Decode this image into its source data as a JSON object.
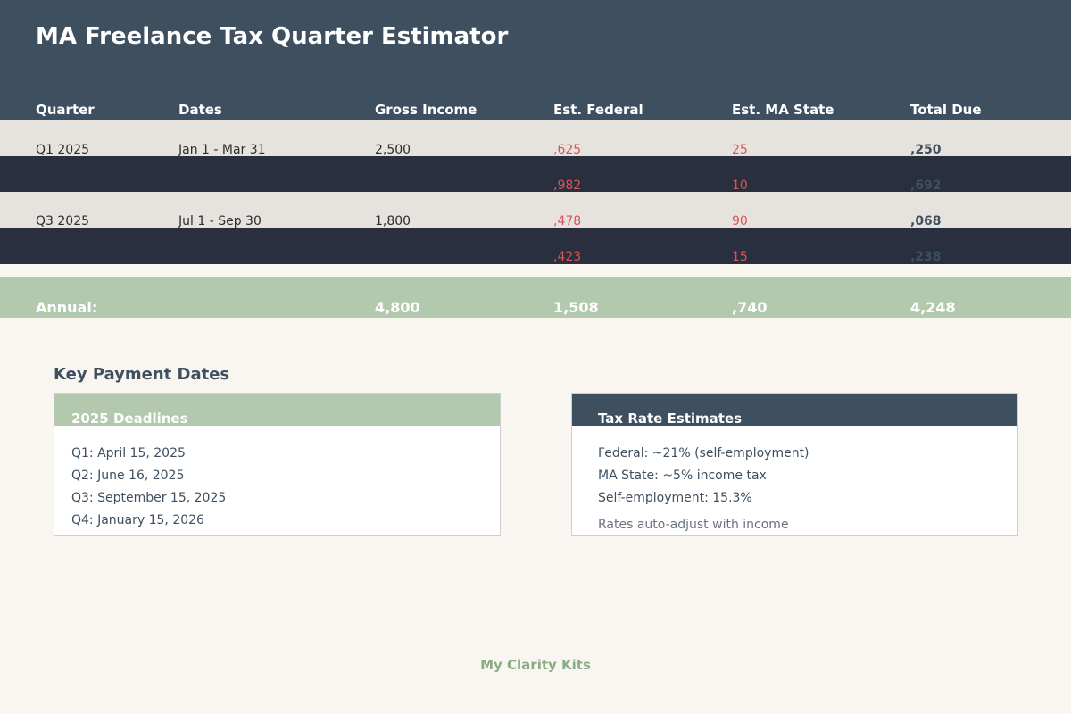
{
  "app": {
    "title": "MA Freelance Tax Quarter Estimator"
  },
  "table": {
    "headers": [
      "Quarter",
      "Dates",
      "Gross Income",
      "Est. Federal",
      "Est. MA State",
      "Total Due"
    ],
    "rows": [
      {
        "quarter": "Q1 2025",
        "dates": "Jan 1 - Mar 31",
        "gross": "2,500",
        "federal": ",625",
        "state": "25",
        "total": ",250"
      },
      {
        "quarter": "",
        "dates": "",
        "gross": "",
        "federal": ",982",
        "state": "10",
        "total": ",692"
      },
      {
        "quarter": "Q3 2025",
        "dates": "Jul 1 - Sep 30",
        "gross": "1,800",
        "federal": ",478",
        "state": "90",
        "total": ",068"
      },
      {
        "quarter": "",
        "dates": "",
        "gross": "",
        "federal": ",423",
        "state": "15",
        "total": ",238"
      }
    ],
    "annual": {
      "label": "Annual:",
      "gross": "4,800",
      "federal": "1,508",
      "state": ",740",
      "total": "4,248"
    }
  },
  "payment_dates": {
    "section_title": "Key Payment Dates",
    "deadlines": {
      "title": "2025 Deadlines",
      "items": [
        "Q1: April 15, 2025",
        "Q2: June 16, 2025",
        "Q3: September 15, 2025",
        "Q4: January 15, 2026"
      ]
    },
    "rates": {
      "title": "Tax Rate Estimates",
      "items": [
        "Federal: ~21% (self-employment)",
        "MA State: ~5% income tax",
        "Self-employment: 15.3%"
      ],
      "note": "Rates auto-adjust with income"
    }
  },
  "footer": {
    "brand": "My Clarity Kits"
  },
  "colors": {
    "header_bg": "#3e4f60",
    "row_light": "#e6e3de",
    "row_dark": "#2a2f40",
    "annual_bg": "#b3c9ae",
    "tax_red": "#d95454",
    "brand_green": "#8aab84",
    "page_bg": "#f9f6f1"
  }
}
